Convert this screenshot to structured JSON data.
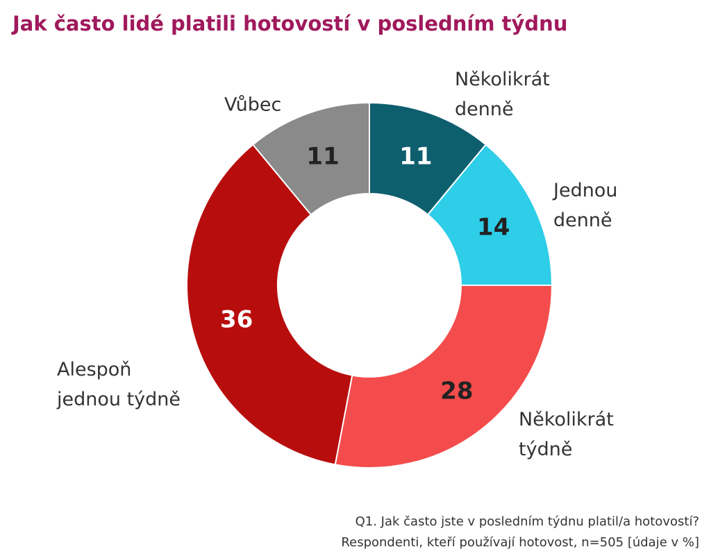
{
  "chart_data": {
    "type": "donut",
    "title": "Jak často lidé platili hotovostí v posledním týdnu",
    "categories": [
      "Několikrát denně",
      "Jednou denně",
      "Několikrát týdně",
      "Alespoň jednou týdně",
      "Vůbec"
    ],
    "values": [
      11,
      14,
      28,
      36,
      11
    ],
    "colors": [
      "#0e5f6e",
      "#2ecde8",
      "#f44c4c",
      "#b80d0d",
      "#8a8a8a"
    ],
    "note": [
      "Q1. Jak často jste v posledním týdnu platil/a hotovostí?",
      "Respondenti, kteří používají hotovost, n=505 [údaje v %]"
    ]
  }
}
